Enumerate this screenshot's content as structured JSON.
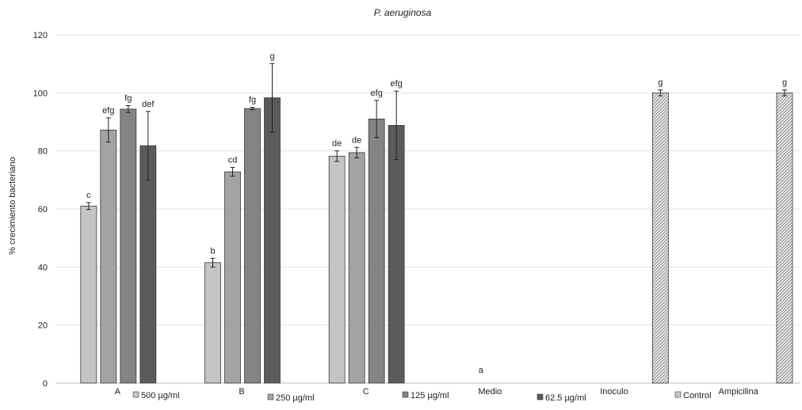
{
  "chart_data": {
    "type": "bar",
    "title": "P. aeruginosa",
    "xlabel": "",
    "ylabel": "% crecimiento bacteriano",
    "ylim": [
      0,
      120
    ],
    "yticks": [
      0,
      20,
      40,
      60,
      80,
      100,
      120
    ],
    "grid": true,
    "legend_position": "bottom",
    "categories": [
      "A",
      "B",
      "C",
      "Medio",
      "Inoculo",
      "Ampicilina"
    ],
    "series": [
      {
        "name": "500 µg/ml",
        "color": "#c4c4c4",
        "pattern": "solid",
        "values": [
          61,
          41.5,
          78.2,
          null,
          null,
          null
        ],
        "errors": [
          1.2,
          1.5,
          1.8,
          null,
          null,
          null
        ],
        "labels": [
          "c",
          "b",
          "de",
          "",
          "",
          ""
        ]
      },
      {
        "name": "250 µg/ml",
        "color": "#a3a3a3",
        "pattern": "solid",
        "values": [
          87.2,
          72.8,
          79.4,
          0,
          null,
          null
        ],
        "errors": [
          4.2,
          1.5,
          1.8,
          null,
          null,
          null
        ],
        "labels": [
          "efg",
          "cd",
          "de",
          "a",
          "",
          ""
        ]
      },
      {
        "name": "125 µg/ml",
        "color": "#848484",
        "pattern": "solid",
        "values": [
          94.4,
          94.6,
          91,
          null,
          null,
          null
        ],
        "errors": [
          1.2,
          0.4,
          6.4,
          null,
          null,
          null
        ],
        "labels": [
          "fg",
          "fg",
          "efg",
          "",
          "",
          ""
        ]
      },
      {
        "name": "62.5 µg/ml",
        "color": "#5b5b5b",
        "pattern": "solid",
        "values": [
          81.8,
          98.3,
          88.8,
          null,
          null,
          null
        ],
        "errors": [
          11.8,
          11.8,
          11.8,
          null,
          null,
          null
        ],
        "labels": [
          "def",
          "g",
          "efg",
          "",
          "",
          ""
        ]
      },
      {
        "name": "Control",
        "color": "#cfcfcf",
        "pattern": "hatch",
        "values": [
          null,
          null,
          null,
          null,
          100,
          100
        ],
        "errors": [
          null,
          null,
          null,
          null,
          1,
          1
        ],
        "labels": [
          "",
          "",
          "",
          "",
          "g",
          "g"
        ]
      }
    ]
  }
}
